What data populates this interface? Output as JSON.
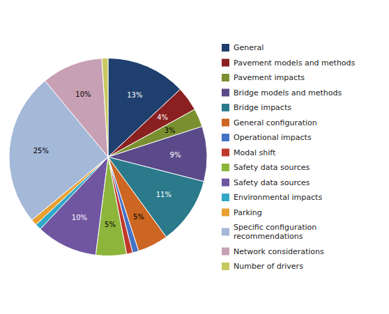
{
  "chart_data": {
    "type": "pie",
    "categories": [
      "General",
      "Pavement models and methods",
      "Pavement impacts",
      "Bridge models and methods",
      "Bridge impacts",
      "General configuration",
      "Operational impacts",
      "Modal shift",
      "Safety data sources",
      "Safety data sources",
      "Environmental impacts",
      "Parking",
      "Specific configuration\nrecommendations",
      "Network considerations",
      "Number of drivers"
    ],
    "values": [
      13,
      4,
      3,
      9,
      11,
      5,
      1,
      1,
      5,
      10,
      1,
      1,
      25,
      10,
      1
    ],
    "value_labels": [
      "13%",
      "4%",
      "3%",
      "9%",
      "11%",
      "5%",
      null,
      null,
      "5%",
      "10%",
      null,
      null,
      "25%",
      "10%",
      null
    ],
    "colors": [
      "#1F3F6E",
      "#8B2020",
      "#7A9030",
      "#5B4A8A",
      "#2A7A8C",
      "#CC6622",
      "#4472C4",
      "#C0392B",
      "#8DB53C",
      "#7055A0",
      "#31A8C8",
      "#E8A030",
      "#A4B8D8",
      "#C8A0B4",
      "#C8C860"
    ],
    "data_labels": true,
    "legend": "right"
  }
}
